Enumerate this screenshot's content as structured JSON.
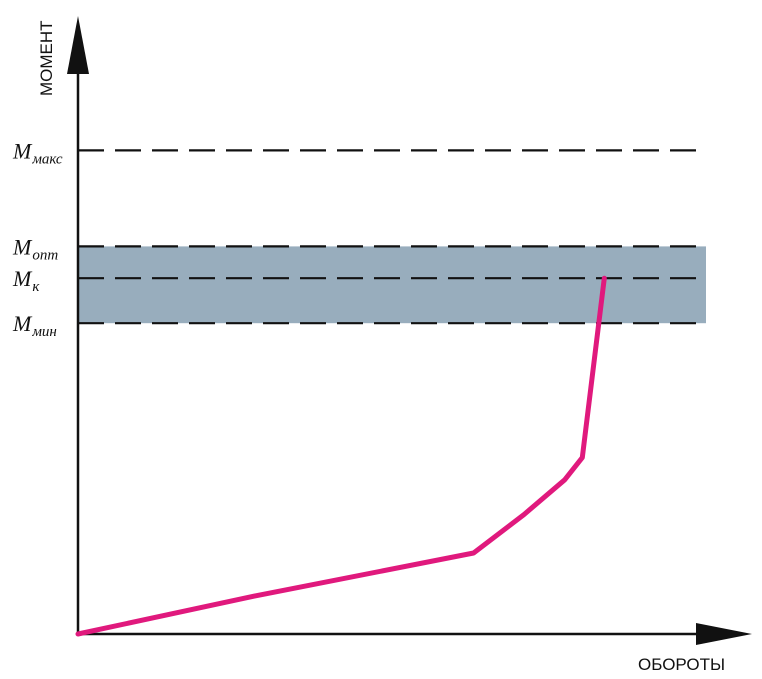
{
  "chart_data": {
    "type": "line",
    "xlabel": "ОБОРОТЫ",
    "ylabel": "МОМЕНТ",
    "xlim": [
      0,
      100
    ],
    "ylim": [
      0,
      100
    ],
    "levels": [
      {
        "main": "M",
        "sub": "макс",
        "value": 80.6
      },
      {
        "main": "M",
        "sub": "опт",
        "value": 64.6
      },
      {
        "main": "M",
        "sub": "к",
        "value": 59.3
      },
      {
        "main": "M",
        "sub": "мин",
        "value": 51.8
      }
    ],
    "band": {
      "from": 51.8,
      "to": 64.6,
      "color": "#98adbd"
    },
    "series": [
      {
        "color": "#e0197d",
        "x": [
          0,
          28,
          63,
          71,
          77.5,
          80.3,
          83.8
        ],
        "y": [
          0,
          6.3,
          13.5,
          19.9,
          25.7,
          29.4,
          59.3
        ]
      }
    ],
    "colors": {
      "axis": "#111111",
      "dash": "#111111",
      "curve": "#e0197d",
      "band": "#98adbd"
    }
  }
}
